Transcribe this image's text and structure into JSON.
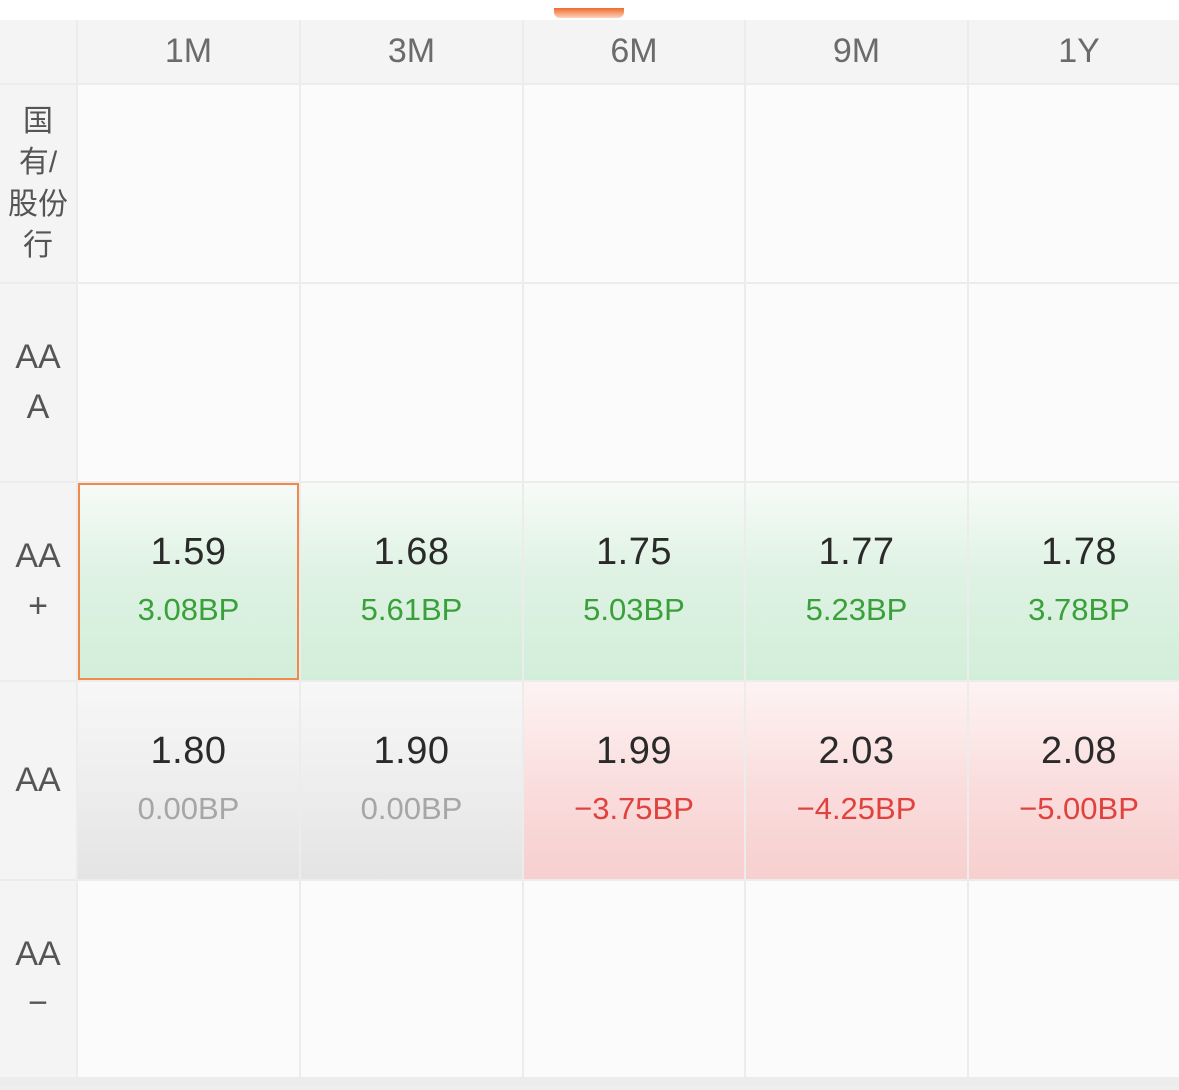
{
  "columns": [
    "1M",
    "3M",
    "6M",
    "9M",
    "1Y"
  ],
  "row_labels": {
    "r1": "国\n有/\n股份\n行",
    "r2": "AA\nA",
    "r3": "AA\n+",
    "r4": "AA",
    "r5": "AA\n−"
  },
  "aa_plus": [
    {
      "rate": "1.59",
      "change": "3.08BP"
    },
    {
      "rate": "1.68",
      "change": "5.61BP"
    },
    {
      "rate": "1.75",
      "change": "5.03BP"
    },
    {
      "rate": "1.77",
      "change": "5.23BP"
    },
    {
      "rate": "1.78",
      "change": "3.78BP"
    }
  ],
  "aa": [
    {
      "rate": "1.80",
      "change": "0.00BP"
    },
    {
      "rate": "1.90",
      "change": "0.00BP"
    },
    {
      "rate": "1.99",
      "change": "−3.75BP"
    },
    {
      "rate": "2.03",
      "change": "−4.25BP"
    },
    {
      "rate": "2.08",
      "change": "−5.00BP"
    }
  ],
  "colors": {
    "up": "#3aa03a",
    "down": "#e0423e",
    "flat": "#a6a6a6",
    "selected_border": "#f08a4b",
    "accent": "#f06a2b"
  }
}
